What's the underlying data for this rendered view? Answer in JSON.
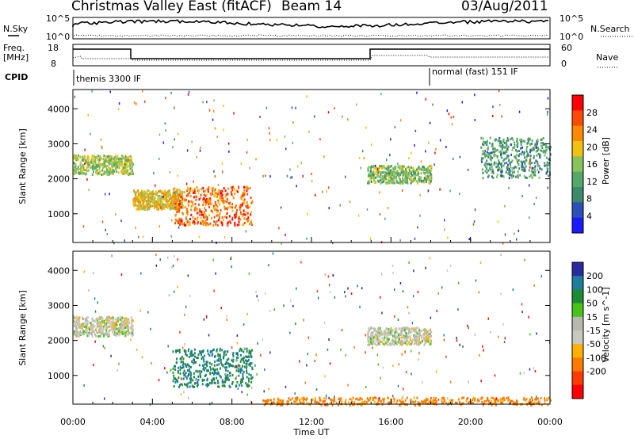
{
  "header": {
    "title": "Christmas Valley East (fitACF)",
    "beam": "Beam 14",
    "date": "03/Aug/2011"
  },
  "top_panels": {
    "nsky_label": "N.Sky",
    "nsky_tick_top": "10^5",
    "nsky_tick_bottom": "10^0",
    "nsearch_label": "N.Search",
    "nsearch_tick_top": "10^5",
    "nsearch_tick_bottom": "10^0",
    "freq_label_1": "Freq.",
    "freq_label_2": "[MHz]",
    "freq_tick_top": "18",
    "freq_tick_bottom": "8",
    "nave_label": "Nave",
    "nave_tick_top": "60",
    "nave_tick_bottom": "0",
    "cpid_label": "CPID",
    "cpid_1": "themis 3300 IF",
    "cpid_2": "normal (fast) 151 IF"
  },
  "colors": {
    "power_scale": [
      "#1a1aff",
      "#2b50b8",
      "#3d8a6a",
      "#55a86a",
      "#88c25a",
      "#f2c010",
      "#ff8a00",
      "#ff4a00",
      "#ff0000"
    ],
    "velocity_scale": [
      "#2a2aa0",
      "#1d7d9e",
      "#1f8a34",
      "#46c21a",
      "#b8b8b0",
      "#c8c8c0",
      "#ffb000",
      "#ff7800",
      "#ff3a00",
      "#ff0000"
    ]
  },
  "chart_data": [
    {
      "type": "heatmap",
      "panel": "power",
      "xlabel": "",
      "ylabel": "Slant Range [km]",
      "x_range_hours": [
        0,
        24
      ],
      "ylim": [
        180,
        4550
      ],
      "y_ticks": [
        "1000",
        "2000",
        "3000",
        "4000"
      ],
      "colorbar": {
        "label": "Power [dB]",
        "ticks": [
          "4",
          "8",
          "12",
          "16",
          "20",
          "24",
          "28"
        ],
        "range": [
          0,
          32
        ]
      },
      "features": [
        {
          "t": [
            0.0,
            3.0
          ],
          "range_km": [
            2150,
            2700
          ],
          "value": 16
        },
        {
          "t": [
            3.0,
            5.5
          ],
          "range_km": [
            1150,
            1700
          ],
          "value": 20
        },
        {
          "t": [
            5.0,
            9.0
          ],
          "range_km": [
            700,
            1800
          ],
          "value": 26
        },
        {
          "t": [
            14.8,
            18.0
          ],
          "range_km": [
            1900,
            2400
          ],
          "value": 14
        },
        {
          "t": [
            20.5,
            24.0
          ],
          "range_km": [
            2050,
            3200
          ],
          "value": 10
        }
      ]
    },
    {
      "type": "heatmap",
      "panel": "velocity",
      "xlabel": "Time UT",
      "ylabel": "Slant Range [km]",
      "x_range_hours": [
        0,
        24
      ],
      "x_ticks": [
        "00:00",
        "04:00",
        "08:00",
        "12:00",
        "16:00",
        "20:00",
        "00:00"
      ],
      "ylim": [
        180,
        4550
      ],
      "y_ticks": [
        "1000",
        "2000",
        "3000",
        "4000"
      ],
      "colorbar": {
        "label": "Velocity [m s^-1]",
        "ticks": [
          "200",
          "100",
          "50",
          "15",
          "-15",
          "-50",
          "-100",
          "-200"
        ]
      },
      "features": [
        {
          "t": [
            0.0,
            3.0
          ],
          "range_km": [
            2150,
            2700
          ],
          "value": 0
        },
        {
          "t": [
            5.0,
            9.0
          ],
          "range_km": [
            700,
            1800
          ],
          "value": 50
        },
        {
          "t": [
            9.5,
            24.0
          ],
          "range_km": [
            180,
            400
          ],
          "value": -60
        },
        {
          "t": [
            14.8,
            18.0
          ],
          "range_km": [
            1900,
            2400
          ],
          "value": 0
        }
      ]
    }
  ]
}
